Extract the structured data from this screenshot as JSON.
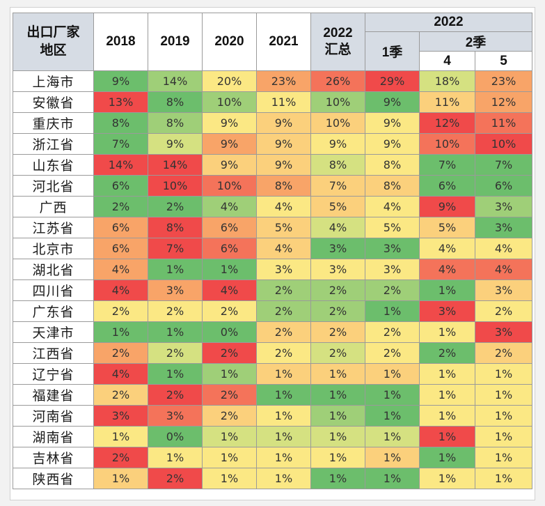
{
  "header": {
    "region": [
      "出口厂家",
      "地区"
    ],
    "years": [
      "2018",
      "2019",
      "2020",
      "2021"
    ],
    "summary": [
      "2022",
      "汇总"
    ],
    "group_2022": "2022",
    "q1": "1季",
    "q2": "2季",
    "months": [
      "4",
      "5"
    ]
  },
  "colors": {
    "header_bg": "#d6dce4",
    "scale": {
      "dark_red": "#f04a4a",
      "red": "#f4735a",
      "orange": "#f8a468",
      "light_orange": "#fbd07c",
      "yellow": "#fbe884",
      "light_green": "#d5e181",
      "mid_green": "#9fcf78",
      "green": "#6cbe6c"
    }
  },
  "rows": [
    {
      "region": "上海市",
      "values": [
        "9%",
        "14%",
        "20%",
        "23%",
        "26%",
        "29%",
        "18%",
        "23%"
      ],
      "colors": [
        "#6cbe6c",
        "#9fcf78",
        "#fbe884",
        "#f8a468",
        "#f4735a",
        "#f04a4a",
        "#d5e181",
        "#f8a468"
      ]
    },
    {
      "region": "安徽省",
      "values": [
        "13%",
        "8%",
        "10%",
        "11%",
        "10%",
        "9%",
        "11%",
        "12%"
      ],
      "colors": [
        "#f04a4a",
        "#6cbe6c",
        "#9fcf78",
        "#fbe884",
        "#9fcf78",
        "#6cbe6c",
        "#fbd07c",
        "#f8a468"
      ]
    },
    {
      "region": "重庆市",
      "values": [
        "8%",
        "8%",
        "9%",
        "9%",
        "10%",
        "9%",
        "12%",
        "11%"
      ],
      "colors": [
        "#6cbe6c",
        "#9fcf78",
        "#fbe884",
        "#fbd07c",
        "#fbd07c",
        "#fbe884",
        "#f04a4a",
        "#f4735a"
      ]
    },
    {
      "region": "浙江省",
      "values": [
        "7%",
        "9%",
        "9%",
        "9%",
        "9%",
        "9%",
        "10%",
        "10%"
      ],
      "colors": [
        "#6cbe6c",
        "#d5e181",
        "#f8a468",
        "#fbd07c",
        "#fbe884",
        "#fbe884",
        "#f4735a",
        "#f04a4a"
      ]
    },
    {
      "region": "山东省",
      "values": [
        "14%",
        "14%",
        "9%",
        "9%",
        "8%",
        "8%",
        "7%",
        "7%"
      ],
      "colors": [
        "#f04a4a",
        "#f04a4a",
        "#fbd07c",
        "#fbd07c",
        "#d5e181",
        "#fbe884",
        "#6cbe6c",
        "#6cbe6c"
      ]
    },
    {
      "region": "河北省",
      "values": [
        "6%",
        "10%",
        "10%",
        "8%",
        "7%",
        "8%",
        "6%",
        "6%"
      ],
      "colors": [
        "#6cbe6c",
        "#f04a4a",
        "#f4735a",
        "#f8a468",
        "#fbd07c",
        "#fbd07c",
        "#6cbe6c",
        "#6cbe6c"
      ]
    },
    {
      "region": "广西",
      "values": [
        "2%",
        "2%",
        "4%",
        "4%",
        "5%",
        "4%",
        "9%",
        "3%"
      ],
      "colors": [
        "#6cbe6c",
        "#6cbe6c",
        "#9fcf78",
        "#fbe884",
        "#fbd07c",
        "#fbe884",
        "#f04a4a",
        "#9fcf78"
      ]
    },
    {
      "region": "江苏省",
      "values": [
        "6%",
        "8%",
        "6%",
        "5%",
        "4%",
        "5%",
        "5%",
        "3%"
      ],
      "colors": [
        "#f8a468",
        "#f04a4a",
        "#f8a468",
        "#fbd07c",
        "#d5e181",
        "#fbe884",
        "#fbd07c",
        "#6cbe6c"
      ]
    },
    {
      "region": "北京市",
      "values": [
        "6%",
        "7%",
        "6%",
        "4%",
        "3%",
        "3%",
        "4%",
        "4%"
      ],
      "colors": [
        "#f8a468",
        "#f04a4a",
        "#f4735a",
        "#fbd07c",
        "#6cbe6c",
        "#6cbe6c",
        "#fbe884",
        "#fbe884"
      ]
    },
    {
      "region": "湖北省",
      "values": [
        "4%",
        "1%",
        "1%",
        "3%",
        "3%",
        "3%",
        "4%",
        "4%"
      ],
      "colors": [
        "#f8a468",
        "#6cbe6c",
        "#6cbe6c",
        "#fbe884",
        "#fbe884",
        "#fbe884",
        "#f4735a",
        "#f4735a"
      ]
    },
    {
      "region": "四川省",
      "values": [
        "4%",
        "3%",
        "4%",
        "2%",
        "2%",
        "2%",
        "1%",
        "3%"
      ],
      "colors": [
        "#f04a4a",
        "#f8a468",
        "#f04a4a",
        "#9fcf78",
        "#9fcf78",
        "#9fcf78",
        "#6cbe6c",
        "#fbd07c"
      ]
    },
    {
      "region": "广东省",
      "values": [
        "2%",
        "2%",
        "2%",
        "2%",
        "2%",
        "1%",
        "3%",
        "2%"
      ],
      "colors": [
        "#fbe884",
        "#fbe884",
        "#fbe884",
        "#9fcf78",
        "#9fcf78",
        "#6cbe6c",
        "#f04a4a",
        "#fbe884"
      ]
    },
    {
      "region": "天津市",
      "values": [
        "1%",
        "1%",
        "0%",
        "2%",
        "2%",
        "2%",
        "1%",
        "3%"
      ],
      "colors": [
        "#6cbe6c",
        "#6cbe6c",
        "#6cbe6c",
        "#fbd07c",
        "#fbd07c",
        "#fbe884",
        "#fbe884",
        "#f04a4a"
      ]
    },
    {
      "region": "江西省",
      "values": [
        "2%",
        "2%",
        "2%",
        "2%",
        "2%",
        "2%",
        "2%",
        "2%"
      ],
      "colors": [
        "#f8a468",
        "#d5e181",
        "#f04a4a",
        "#fbe884",
        "#d5e181",
        "#fbe884",
        "#6cbe6c",
        "#fbd07c"
      ]
    },
    {
      "region": "辽宁省",
      "values": [
        "4%",
        "1%",
        "1%",
        "1%",
        "1%",
        "1%",
        "1%",
        "1%"
      ],
      "colors": [
        "#f04a4a",
        "#6cbe6c",
        "#9fcf78",
        "#fbd07c",
        "#fbd07c",
        "#fbd07c",
        "#fbe884",
        "#fbe884"
      ]
    },
    {
      "region": "福建省",
      "values": [
        "2%",
        "2%",
        "2%",
        "1%",
        "1%",
        "1%",
        "1%",
        "1%"
      ],
      "colors": [
        "#fbd07c",
        "#f04a4a",
        "#f4735a",
        "#6cbe6c",
        "#6cbe6c",
        "#6cbe6c",
        "#fbe884",
        "#fbe884"
      ]
    },
    {
      "region": "河南省",
      "values": [
        "3%",
        "3%",
        "2%",
        "1%",
        "1%",
        "1%",
        "1%",
        "1%"
      ],
      "colors": [
        "#f04a4a",
        "#f4735a",
        "#fbd07c",
        "#fbe884",
        "#9fcf78",
        "#6cbe6c",
        "#fbe884",
        "#fbe884"
      ]
    },
    {
      "region": "湖南省",
      "values": [
        "1%",
        "0%",
        "1%",
        "1%",
        "1%",
        "1%",
        "1%",
        "1%"
      ],
      "colors": [
        "#fbe884",
        "#6cbe6c",
        "#d5e181",
        "#d5e181",
        "#d5e181",
        "#d5e181",
        "#f04a4a",
        "#fbe884"
      ]
    },
    {
      "region": "吉林省",
      "values": [
        "2%",
        "1%",
        "1%",
        "1%",
        "1%",
        "1%",
        "1%",
        "1%"
      ],
      "colors": [
        "#f04a4a",
        "#fbe884",
        "#fbe884",
        "#fbe884",
        "#fbe884",
        "#fbd07c",
        "#6cbe6c",
        "#fbe884"
      ]
    },
    {
      "region": "陕西省",
      "values": [
        "1%",
        "2%",
        "1%",
        "1%",
        "1%",
        "1%",
        "1%",
        "1%"
      ],
      "colors": [
        "#fbd07c",
        "#f04a4a",
        "#fbe884",
        "#fbe884",
        "#6cbe6c",
        "#6cbe6c",
        "#fbe884",
        "#fbe884"
      ]
    }
  ]
}
